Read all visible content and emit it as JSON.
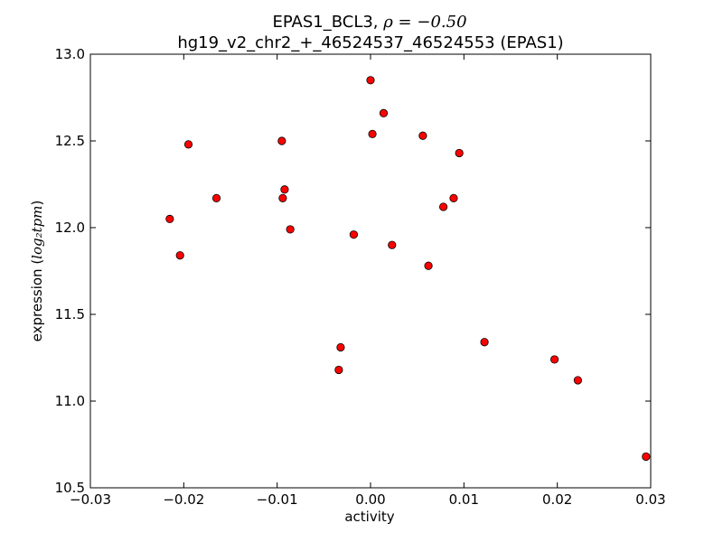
{
  "chart_data": {
    "type": "scatter",
    "title_line1_text": "EPAS1_BCL3, ",
    "title_line1_math": "ρ = −0.50",
    "title_line2": "hg19_v2_chr2_+_46524537_46524553 (EPAS1)",
    "xlabel": "activity",
    "ylabel_text": "expression (",
    "ylabel_math": "log₂tpm",
    "ylabel_close": ")",
    "xlim": [
      -0.03,
      0.03
    ],
    "ylim": [
      10.5,
      13.0
    ],
    "x_ticks": [
      -0.03,
      -0.02,
      -0.01,
      0.0,
      0.01,
      0.02,
      0.03
    ],
    "x_tick_labels": [
      "−0.03",
      "−0.02",
      "−0.01",
      "0.00",
      "0.01",
      "0.02",
      "0.03"
    ],
    "y_ticks": [
      10.5,
      11.0,
      11.5,
      12.0,
      12.5,
      13.0
    ],
    "y_tick_labels": [
      "10.5",
      "11.0",
      "11.5",
      "12.0",
      "12.5",
      "13.0"
    ],
    "grid": false,
    "marker_color": "#ff0000",
    "marker_edge": "#000000",
    "points": [
      {
        "x": 0.0,
        "y": 12.85
      },
      {
        "x": 0.0014,
        "y": 12.66
      },
      {
        "x": 0.0002,
        "y": 12.54
      },
      {
        "x": 0.0056,
        "y": 12.53
      },
      {
        "x": -0.0095,
        "y": 12.5
      },
      {
        "x": -0.0195,
        "y": 12.48
      },
      {
        "x": 0.0095,
        "y": 12.43
      },
      {
        "x": -0.0092,
        "y": 12.22
      },
      {
        "x": -0.0165,
        "y": 12.17
      },
      {
        "x": -0.0094,
        "y": 12.17
      },
      {
        "x": 0.0089,
        "y": 12.17
      },
      {
        "x": 0.0078,
        "y": 12.12
      },
      {
        "x": -0.0215,
        "y": 12.05
      },
      {
        "x": -0.0086,
        "y": 11.99
      },
      {
        "x": -0.0018,
        "y": 11.96
      },
      {
        "x": 0.0023,
        "y": 11.9
      },
      {
        "x": -0.0204,
        "y": 11.84
      },
      {
        "x": 0.0062,
        "y": 11.78
      },
      {
        "x": 0.0122,
        "y": 11.34
      },
      {
        "x": -0.0032,
        "y": 11.31
      },
      {
        "x": 0.0197,
        "y": 11.24
      },
      {
        "x": -0.0034,
        "y": 11.18
      },
      {
        "x": 0.0222,
        "y": 11.12
      },
      {
        "x": 0.0295,
        "y": 10.68
      }
    ]
  }
}
